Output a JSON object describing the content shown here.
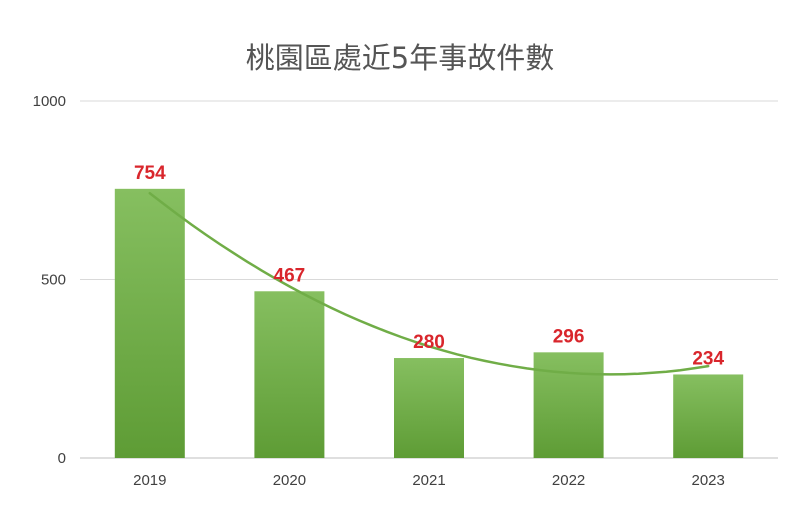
{
  "chart_data": {
    "type": "bar",
    "title": "桃園區處近5年事故件數",
    "categories": [
      "2019",
      "2020",
      "2021",
      "2022",
      "2023"
    ],
    "series": [
      {
        "values": [
          754,
          467,
          280,
          296,
          234
        ]
      }
    ],
    "trendline": {
      "type": "polynomial"
    },
    "ylim": [
      0,
      1000
    ],
    "yticks": [
      "0",
      "500",
      "1000"
    ],
    "grid": true,
    "legend": "none",
    "colors": {
      "bar_top": "#86bf60",
      "bar_bottom": "#5e9c35",
      "trendline": "#70ad47",
      "data_label": "#d9262c",
      "gridline": "#d9d9d9"
    }
  }
}
